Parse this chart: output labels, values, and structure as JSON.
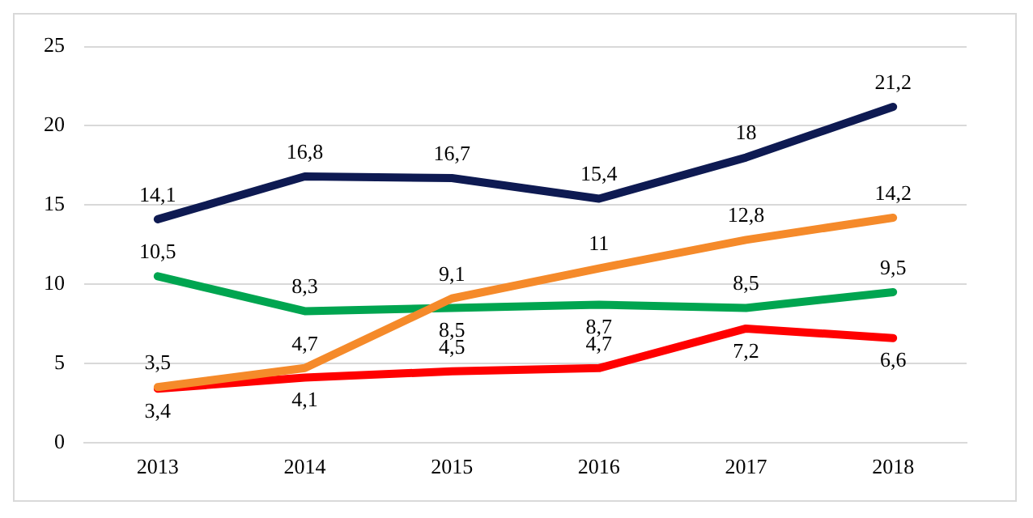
{
  "chart_data": {
    "type": "line",
    "categories": [
      "2013",
      "2014",
      "2015",
      "2016",
      "2017",
      "2018"
    ],
    "series": [
      {
        "color": "#0e1a52",
        "values": [
          14.1,
          16.8,
          16.7,
          15.4,
          18,
          21.2
        ],
        "value_labels": [
          "14,1",
          "16,8",
          "16,7",
          "15,4",
          "18",
          "21,2"
        ]
      },
      {
        "color": "#f58a2a",
        "values": [
          3.5,
          4.7,
          9.1,
          11,
          12.8,
          14.2
        ],
        "value_labels": [
          "3,5",
          "4,7",
          "9,1",
          "11",
          "12,8",
          "14,2"
        ]
      },
      {
        "color": "#00a550",
        "values": [
          10.5,
          8.3,
          8.5,
          8.7,
          8.5,
          9.5
        ],
        "value_labels": [
          "10,5",
          "8,3",
          "8,5",
          "8,7",
          "8,5",
          "9,5"
        ]
      },
      {
        "color": "#ff0000",
        "values": [
          3.4,
          4.1,
          4.5,
          4.7,
          7.2,
          6.6
        ],
        "value_labels": [
          "3,4",
          "4,1",
          "4,5",
          "4,7",
          "7,2",
          "6,6"
        ]
      }
    ],
    "ylim": [
      0,
      25
    ],
    "yticks": [
      0,
      5,
      10,
      15,
      20,
      25
    ],
    "grid": "y",
    "legend": false,
    "marker": "none",
    "line_style": "solid"
  }
}
